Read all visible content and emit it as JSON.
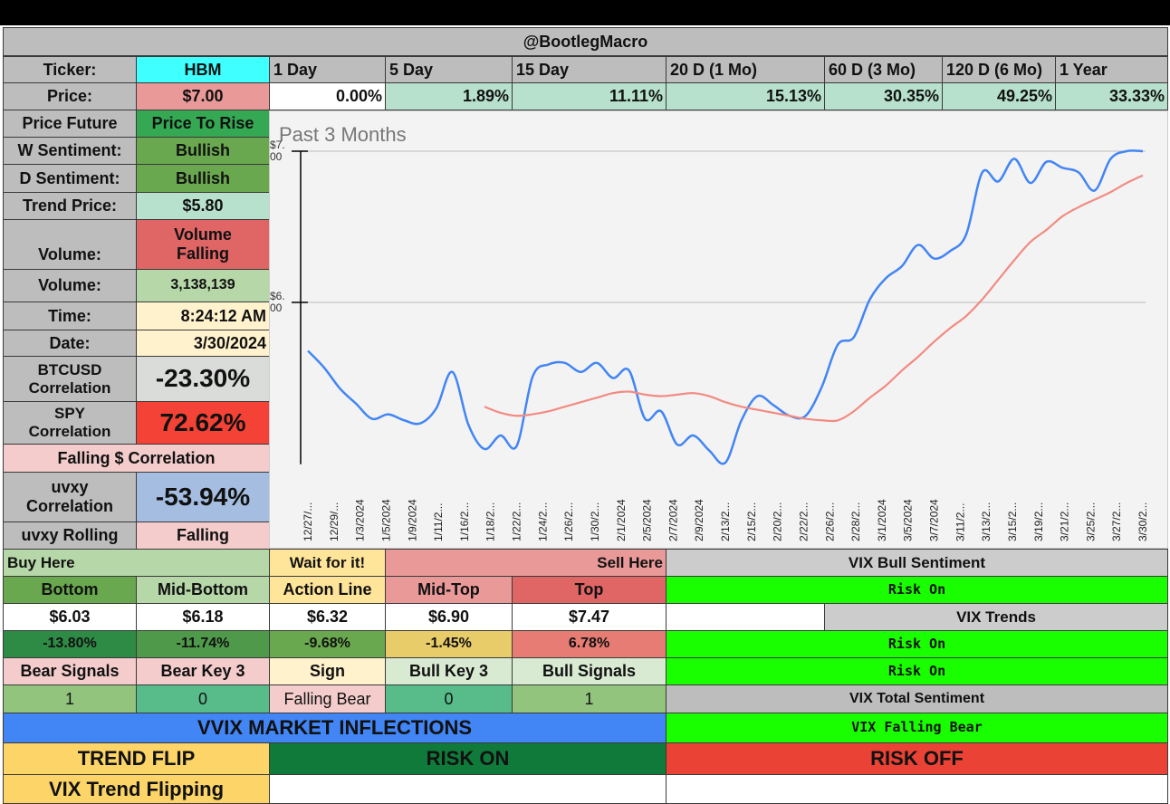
{
  "header": {
    "title": "@BootlegMacro"
  },
  "ticker": {
    "label": "Ticker:",
    "value": "HBM"
  },
  "price": {
    "label": "Price:",
    "value": "$7.00"
  },
  "periods": [
    {
      "label": "1 Day",
      "change": "0.00%"
    },
    {
      "label": "5 Day",
      "change": "1.89%"
    },
    {
      "label": "15 Day",
      "change": "11.11%"
    },
    {
      "label": "20 D (1 Mo)",
      "change": "15.13%"
    },
    {
      "label": "60 D (3 Mo)",
      "change": "30.35%"
    },
    {
      "label": "120 D (6 Mo)",
      "change": "49.25%"
    },
    {
      "label": "1 Year",
      "change": "33.33%"
    }
  ],
  "stats": {
    "price_future": {
      "label": "Price Future",
      "value": "Price To Rise"
    },
    "w_sentiment": {
      "label": "W Sentiment:",
      "value": "Bullish"
    },
    "d_sentiment": {
      "label": "D Sentiment:",
      "value": "Bullish"
    },
    "trend_price": {
      "label": "Trend Price:",
      "value": "$5.80"
    },
    "volume_trend": {
      "label": "Volume:",
      "value_line1": "Volume",
      "value_line2": "Falling"
    },
    "volume": {
      "label": "Volume:",
      "value": "3,138,139"
    },
    "time": {
      "label": "Time:",
      "value": "8:24:12 AM"
    },
    "date": {
      "label": "Date:",
      "value": "3/30/2024"
    },
    "btc_corr": {
      "label_line1": "BTCUSD",
      "label_line2": "Correlation",
      "value": "-23.30%"
    },
    "spy_corr": {
      "label_line1": "SPY",
      "label_line2": "Correlation",
      "value": "72.62%"
    },
    "falling_corr": "Falling $ Correlation",
    "uvxy_corr": {
      "label_line1": "uvxy",
      "label_line2": "Correlation",
      "value": "-53.94%"
    },
    "uvxy_rolling": {
      "label": "uvxy Rolling",
      "value": "Falling"
    }
  },
  "levels": {
    "buy_here": "Buy Here",
    "wait": "Wait for it!",
    "sell_here": "Sell Here",
    "columns": [
      {
        "name": "Bottom",
        "price": "$6.03",
        "pct": "-13.80%"
      },
      {
        "name": "Mid-Bottom",
        "price": "$6.18",
        "pct": "-11.74%"
      },
      {
        "name": "Action Line",
        "price": "$6.32",
        "pct": "-9.68%"
      },
      {
        "name": "Mid-Top",
        "price": "$6.90",
        "pct": "-1.45%"
      },
      {
        "name": "Top",
        "price": "$7.47",
        "pct": "6.78%"
      }
    ],
    "signals": [
      {
        "name": "Bear Signals",
        "value": "1"
      },
      {
        "name": "Bear Key 3",
        "value": "0"
      },
      {
        "name": "Sign",
        "value": "Falling Bear"
      },
      {
        "name": "Bull Key 3",
        "value": "0"
      },
      {
        "name": "Bull Signals",
        "value": "1"
      }
    ]
  },
  "vix": {
    "bull_sentiment_label": "VIX Bull Sentiment",
    "bull_sentiment": "Risk On",
    "trends_label": "VIX Trends",
    "trend1": "Risk On",
    "trend2": "Risk On",
    "total_label": "VIX Total Sentiment",
    "total": "VIX Falling Bear"
  },
  "vvix": {
    "title": "VVIX MARKET INFLECTIONS",
    "trend_flip": "TREND FLIP",
    "risk_on": "RISK ON",
    "risk_off": "RISK OFF",
    "vix_trend": "VIX Trend Flipping"
  },
  "colors": {
    "price_line": "#4285f4",
    "trend_line": "#f28b82",
    "risk_on": "#1aff00",
    "risk_off": "#ea4335",
    "vvix": "#4285f4"
  },
  "chart_data": {
    "type": "line",
    "title": "Past 3 Months",
    "ytick_labels": [
      "$7.00",
      "$6.00"
    ],
    "yticks": [
      7,
      6
    ],
    "ylim": [
      4.93,
      7.0
    ],
    "grid": true,
    "x_labels": [
      "12/27/...",
      "12/29/...",
      "1/3/2024",
      "1/5/2024",
      "1/9/2024",
      "1/11/2...",
      "1/16/2...",
      "1/18/2...",
      "1/22/2...",
      "1/24/2...",
      "1/26/2...",
      "1/30/2...",
      "2/1/2024",
      "2/5/2024",
      "2/7/2024",
      "2/9/2024",
      "2/13/2...",
      "2/15/2...",
      "2/20/2...",
      "2/22/2...",
      "2/26/2...",
      "2/28/2...",
      "3/1/2024",
      "3/5/2024",
      "3/7/2024",
      "3/11/2...",
      "3/13/2...",
      "3/15/2...",
      "3/19/2...",
      "3/21/2...",
      "3/25/2...",
      "3/27/2...",
      "3/30/2..."
    ],
    "series": [
      {
        "color": "#4285f4",
        "start_index": 0,
        "values": [
          5.68,
          5.57,
          5.43,
          5.33,
          5.23,
          5.26,
          5.22,
          5.2,
          5.3,
          5.54,
          5.19,
          5.03,
          5.12,
          5.05,
          5.51,
          5.59,
          5.6,
          5.54,
          5.6,
          5.5,
          5.55,
          5.23,
          5.28,
          5.06,
          5.12,
          5.02,
          4.94,
          5.22,
          5.38,
          5.32,
          5.25,
          5.25,
          5.44,
          5.72,
          5.77,
          6.02,
          6.16,
          6.24,
          6.38,
          6.29,
          6.34,
          6.45,
          6.86,
          6.8,
          6.95,
          6.79,
          6.93,
          6.89,
          6.86,
          6.74,
          6.95,
          7.0,
          7.0
        ]
      },
      {
        "color": "#f28b82",
        "start_index": 11,
        "values": [
          5.31,
          5.27,
          5.25,
          5.26,
          5.28,
          5.31,
          5.34,
          5.37,
          5.4,
          5.41,
          5.39,
          5.38,
          5.39,
          5.4,
          5.38,
          5.34,
          5.31,
          5.29,
          5.27,
          5.25,
          5.23,
          5.22,
          5.22,
          5.28,
          5.37,
          5.45,
          5.55,
          5.64,
          5.74,
          5.83,
          5.91,
          6.02,
          6.15,
          6.28,
          6.4,
          6.48,
          6.57,
          6.63,
          6.68,
          6.73,
          6.79,
          6.84
        ]
      }
    ]
  }
}
